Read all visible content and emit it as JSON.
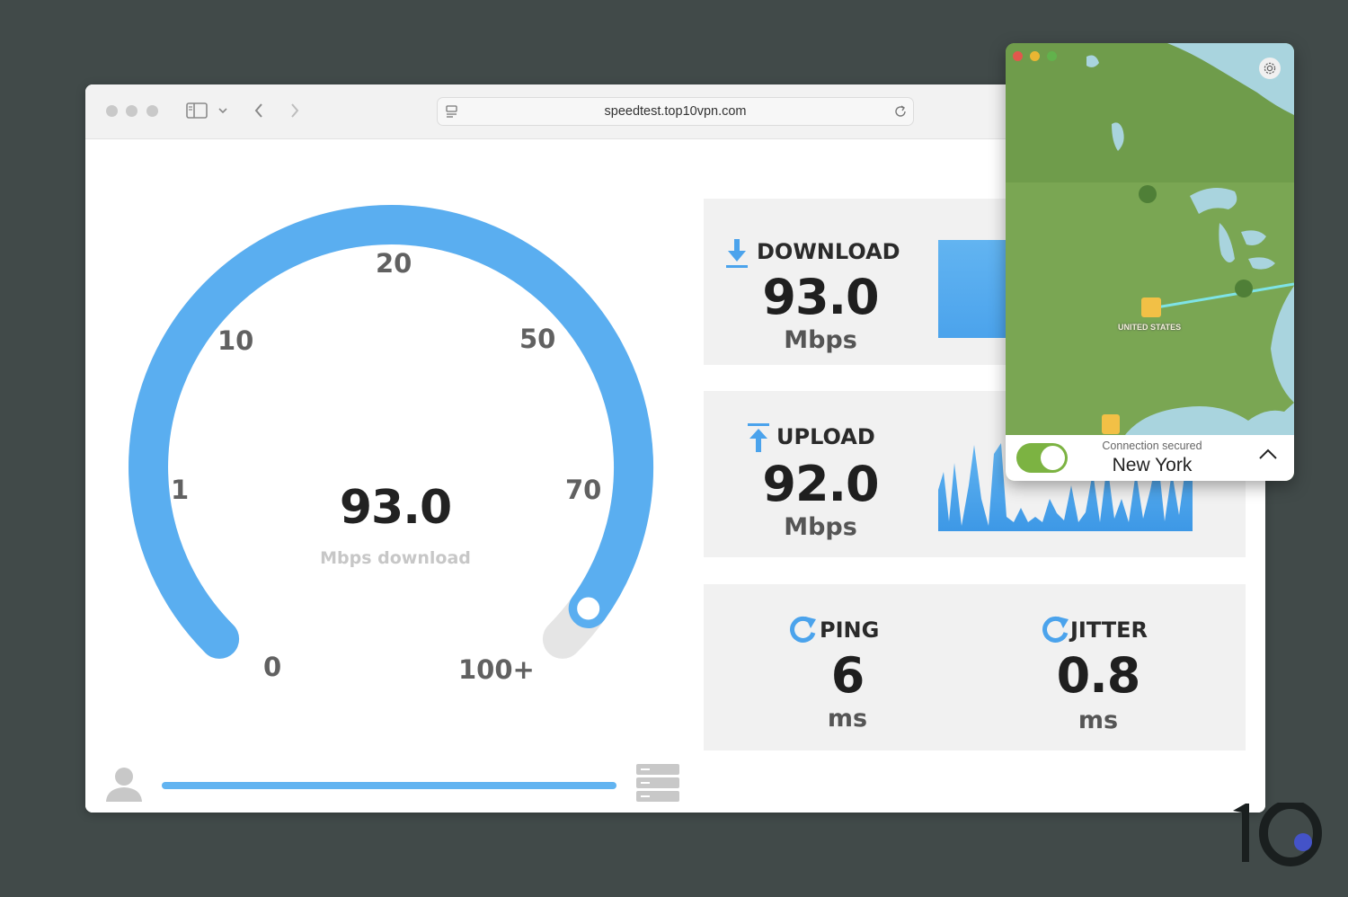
{
  "browser": {
    "url": "speedtest.top10vpn.com"
  },
  "gauge": {
    "value": "93.0",
    "label": "Mbps download",
    "scale_labels": [
      "0",
      "1",
      "10",
      "20",
      "50",
      "70",
      "100+"
    ],
    "fraction": 0.965,
    "colors": {
      "arc": "#5aaef0",
      "track": "#e5e5e5"
    }
  },
  "progress": {
    "fraction": 1.0
  },
  "download": {
    "title": "DOWNLOAD",
    "value": "93.0",
    "unit": "Mbps"
  },
  "upload": {
    "title": "UPLOAD",
    "value": "92.0",
    "unit": "Mbps"
  },
  "ping": {
    "title": "PING",
    "value": "6",
    "unit": "ms"
  },
  "jitter": {
    "title": "JITTER",
    "value": "0.8",
    "unit": "ms"
  },
  "vpn": {
    "status": "Connection secured",
    "location": "New York",
    "map_label": "UNITED STATES",
    "connected": true
  },
  "icons": {
    "settings": "gear-icon",
    "sidebar": "sidebar-icon",
    "back": "chevron-left-icon",
    "forward": "chevron-right-icon",
    "reload": "reload-icon",
    "user": "user-icon",
    "server": "server-icon",
    "ping": "refresh-icon",
    "collapse": "chevron-up-icon"
  },
  "colors": {
    "accent": "#5aaef0",
    "vpn_green": "#7cb342",
    "background": "#414a49"
  }
}
